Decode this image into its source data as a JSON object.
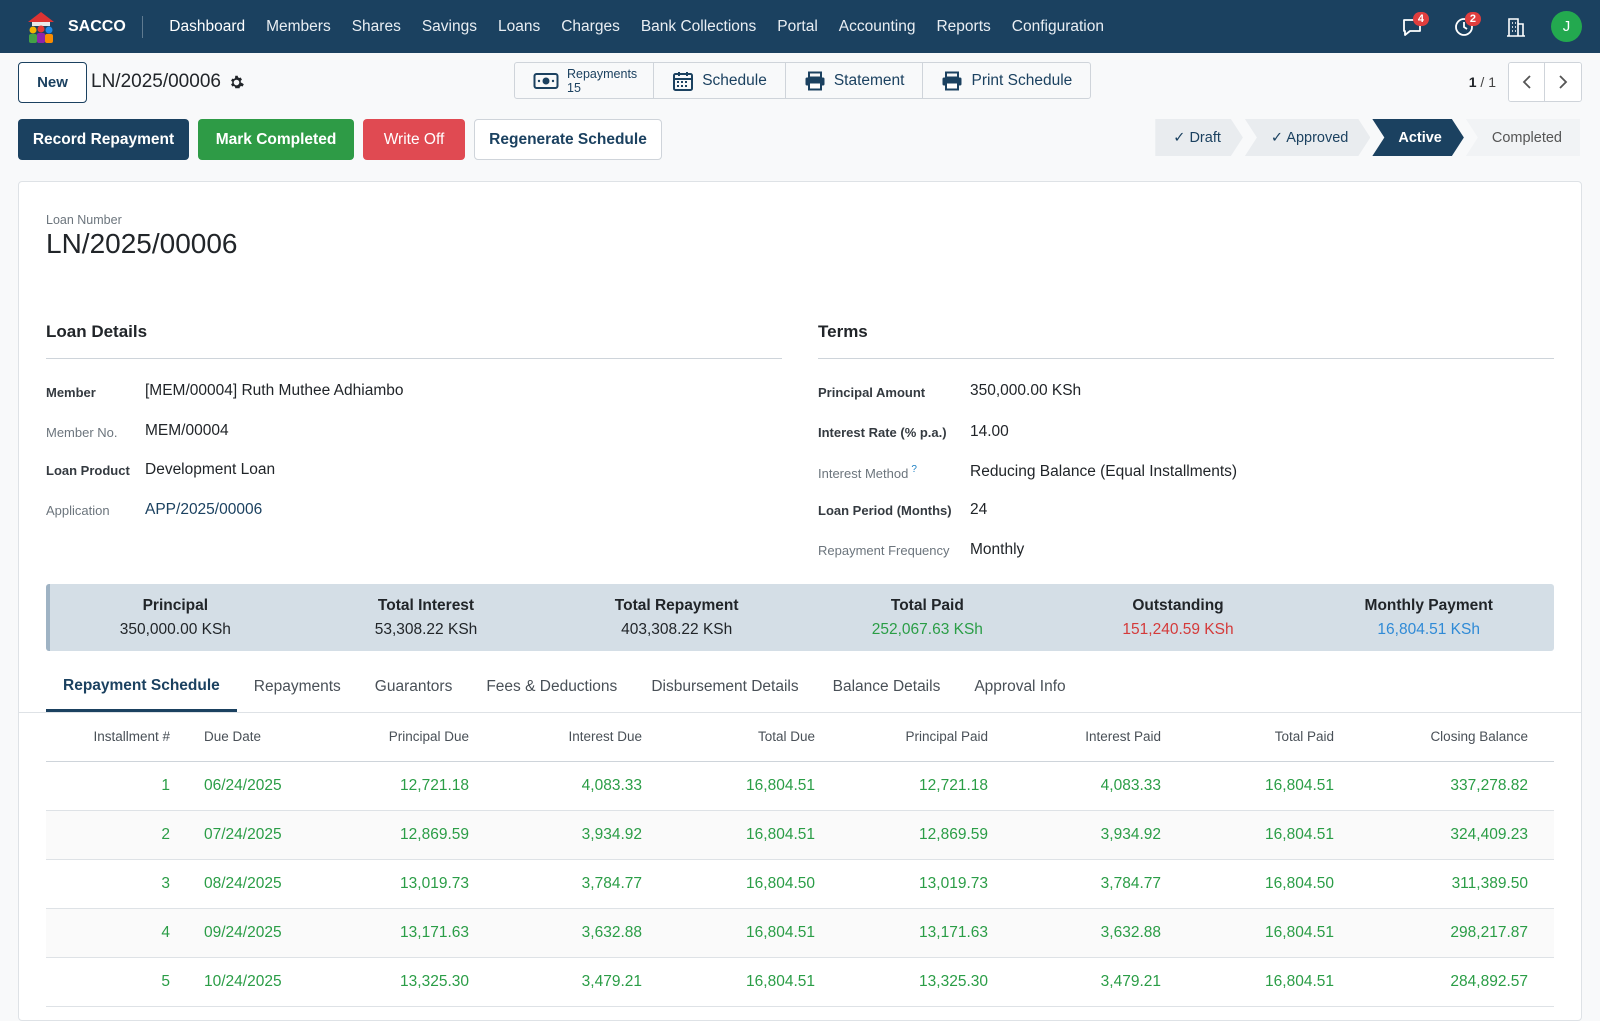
{
  "brand": {
    "name": "SACCO"
  },
  "menu": [
    "Dashboard",
    "Members",
    "Shares",
    "Savings",
    "Loans",
    "Charges",
    "Bank Collections",
    "Portal",
    "Accounting",
    "Reports",
    "Configuration"
  ],
  "nav": {
    "messages_count": "4",
    "activities_count": "2",
    "avatar_initial": "J",
    "avatar_color": "#23a94f"
  },
  "control": {
    "new_label": "New",
    "record_name": "LN/2025/00006",
    "smart_buttons": {
      "repayments_label": "Repayments",
      "repayments_count": "15",
      "schedule_label": "Schedule",
      "statement_label": "Statement",
      "print_label": "Print Schedule"
    },
    "pager": {
      "current": "1",
      "total": "/ 1"
    }
  },
  "actions": {
    "record_repayment": "Record Repayment",
    "mark_completed": "Mark Completed",
    "write_off": "Write Off",
    "regenerate": "Regenerate Schedule"
  },
  "statusbar": {
    "draft": "✓  Draft",
    "approved": "✓  Approved",
    "active": "Active",
    "completed": "Completed"
  },
  "form": {
    "loan_number_label": "Loan Number",
    "loan_number": "LN/2025/00006",
    "loan_details": {
      "title": "Loan Details",
      "member_label": "Member",
      "member": "[MEM/00004] Ruth Muthee Adhiambo",
      "member_no_label": "Member No.",
      "member_no": "MEM/00004",
      "product_label": "Loan Product",
      "product": "Development Loan",
      "application_label": "Application",
      "application": "APP/2025/00006"
    },
    "terms": {
      "title": "Terms",
      "principal_label": "Principal Amount",
      "principal": "350,000.00  KSh",
      "rate_label": "Interest Rate (% p.a.)",
      "rate": "14.00",
      "method_label": "Interest Method",
      "method_help": "?",
      "method": "Reducing Balance (Equal Installments)",
      "period_label": "Loan Period (Months)",
      "period": "24",
      "frequency_label": "Repayment Frequency",
      "frequency": "Monthly"
    }
  },
  "summary": [
    {
      "label": "Principal",
      "value": "350,000.00 KSh",
      "color": "#212529"
    },
    {
      "label": "Total Interest",
      "value": "53,308.22 KSh",
      "color": "#212529"
    },
    {
      "label": "Total Repayment",
      "value": "403,308.22 KSh",
      "color": "#212529"
    },
    {
      "label": "Total Paid",
      "value": "252,067.63 KSh",
      "color": "#2a9d46"
    },
    {
      "label": "Outstanding",
      "value": "151,240.59 KSh",
      "color": "#d43a3a"
    },
    {
      "label": "Monthly Payment",
      "value": "16,804.51 KSh",
      "color": "#2f8ad6"
    }
  ],
  "tabs": [
    "Repayment Schedule",
    "Repayments",
    "Guarantors",
    "Fees & Deductions",
    "Disbursement Details",
    "Balance Details",
    "Approval Info"
  ],
  "schedule": {
    "columns": [
      "Installment #",
      "Due Date",
      "Principal Due",
      "Interest Due",
      "Total Due",
      "Principal Paid",
      "Interest Paid",
      "Total Paid",
      "Closing Balance"
    ],
    "rows": [
      [
        "1",
        "06/24/2025",
        "12,721.18",
        "4,083.33",
        "16,804.51",
        "12,721.18",
        "4,083.33",
        "16,804.51",
        "337,278.82"
      ],
      [
        "2",
        "07/24/2025",
        "12,869.59",
        "3,934.92",
        "16,804.51",
        "12,869.59",
        "3,934.92",
        "16,804.51",
        "324,409.23"
      ],
      [
        "3",
        "08/24/2025",
        "13,019.73",
        "3,784.77",
        "16,804.50",
        "13,019.73",
        "3,784.77",
        "16,804.50",
        "311,389.50"
      ],
      [
        "4",
        "09/24/2025",
        "13,171.63",
        "3,632.88",
        "16,804.51",
        "13,171.63",
        "3,632.88",
        "16,804.51",
        "298,217.87"
      ],
      [
        "5",
        "10/24/2025",
        "13,325.30",
        "3,479.21",
        "16,804.51",
        "13,325.30",
        "3,479.21",
        "16,804.51",
        "284,892.57"
      ]
    ]
  }
}
